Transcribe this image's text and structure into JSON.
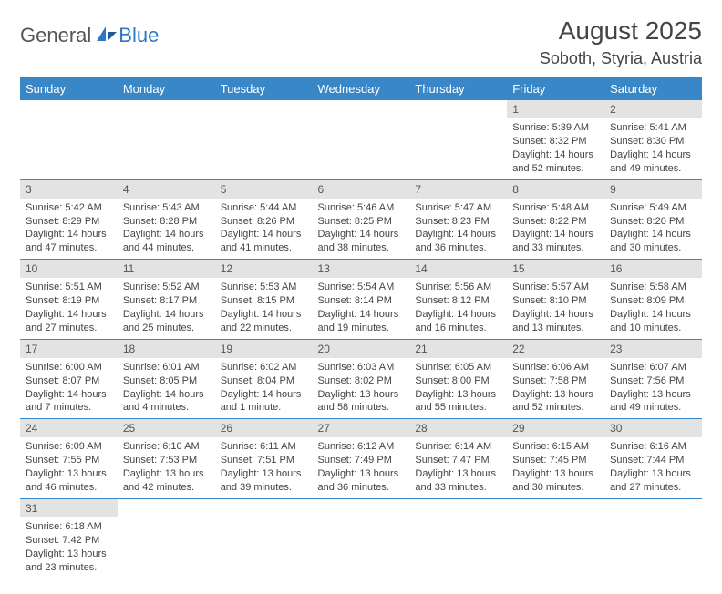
{
  "logo": {
    "part1": "General",
    "part2": "Blue"
  },
  "title": "August 2025",
  "location": "Soboth, Styria, Austria",
  "colors": {
    "header_bg": "#3a87c8",
    "header_text": "#ffffff",
    "daynum_bg": "#e3e3e3",
    "row_divider": "#3a87c8",
    "logo_blue": "#2b78c4",
    "text": "#444444"
  },
  "weekdays": [
    "Sunday",
    "Monday",
    "Tuesday",
    "Wednesday",
    "Thursday",
    "Friday",
    "Saturday"
  ],
  "weeks": [
    [
      null,
      null,
      null,
      null,
      null,
      {
        "d": "1",
        "sr": "Sunrise: 5:39 AM",
        "ss": "Sunset: 8:32 PM",
        "dl1": "Daylight: 14 hours",
        "dl2": "and 52 minutes."
      },
      {
        "d": "2",
        "sr": "Sunrise: 5:41 AM",
        "ss": "Sunset: 8:30 PM",
        "dl1": "Daylight: 14 hours",
        "dl2": "and 49 minutes."
      }
    ],
    [
      {
        "d": "3",
        "sr": "Sunrise: 5:42 AM",
        "ss": "Sunset: 8:29 PM",
        "dl1": "Daylight: 14 hours",
        "dl2": "and 47 minutes."
      },
      {
        "d": "4",
        "sr": "Sunrise: 5:43 AM",
        "ss": "Sunset: 8:28 PM",
        "dl1": "Daylight: 14 hours",
        "dl2": "and 44 minutes."
      },
      {
        "d": "5",
        "sr": "Sunrise: 5:44 AM",
        "ss": "Sunset: 8:26 PM",
        "dl1": "Daylight: 14 hours",
        "dl2": "and 41 minutes."
      },
      {
        "d": "6",
        "sr": "Sunrise: 5:46 AM",
        "ss": "Sunset: 8:25 PM",
        "dl1": "Daylight: 14 hours",
        "dl2": "and 38 minutes."
      },
      {
        "d": "7",
        "sr": "Sunrise: 5:47 AM",
        "ss": "Sunset: 8:23 PM",
        "dl1": "Daylight: 14 hours",
        "dl2": "and 36 minutes."
      },
      {
        "d": "8",
        "sr": "Sunrise: 5:48 AM",
        "ss": "Sunset: 8:22 PM",
        "dl1": "Daylight: 14 hours",
        "dl2": "and 33 minutes."
      },
      {
        "d": "9",
        "sr": "Sunrise: 5:49 AM",
        "ss": "Sunset: 8:20 PM",
        "dl1": "Daylight: 14 hours",
        "dl2": "and 30 minutes."
      }
    ],
    [
      {
        "d": "10",
        "sr": "Sunrise: 5:51 AM",
        "ss": "Sunset: 8:19 PM",
        "dl1": "Daylight: 14 hours",
        "dl2": "and 27 minutes."
      },
      {
        "d": "11",
        "sr": "Sunrise: 5:52 AM",
        "ss": "Sunset: 8:17 PM",
        "dl1": "Daylight: 14 hours",
        "dl2": "and 25 minutes."
      },
      {
        "d": "12",
        "sr": "Sunrise: 5:53 AM",
        "ss": "Sunset: 8:15 PM",
        "dl1": "Daylight: 14 hours",
        "dl2": "and 22 minutes."
      },
      {
        "d": "13",
        "sr": "Sunrise: 5:54 AM",
        "ss": "Sunset: 8:14 PM",
        "dl1": "Daylight: 14 hours",
        "dl2": "and 19 minutes."
      },
      {
        "d": "14",
        "sr": "Sunrise: 5:56 AM",
        "ss": "Sunset: 8:12 PM",
        "dl1": "Daylight: 14 hours",
        "dl2": "and 16 minutes."
      },
      {
        "d": "15",
        "sr": "Sunrise: 5:57 AM",
        "ss": "Sunset: 8:10 PM",
        "dl1": "Daylight: 14 hours",
        "dl2": "and 13 minutes."
      },
      {
        "d": "16",
        "sr": "Sunrise: 5:58 AM",
        "ss": "Sunset: 8:09 PM",
        "dl1": "Daylight: 14 hours",
        "dl2": "and 10 minutes."
      }
    ],
    [
      {
        "d": "17",
        "sr": "Sunrise: 6:00 AM",
        "ss": "Sunset: 8:07 PM",
        "dl1": "Daylight: 14 hours",
        "dl2": "and 7 minutes."
      },
      {
        "d": "18",
        "sr": "Sunrise: 6:01 AM",
        "ss": "Sunset: 8:05 PM",
        "dl1": "Daylight: 14 hours",
        "dl2": "and 4 minutes."
      },
      {
        "d": "19",
        "sr": "Sunrise: 6:02 AM",
        "ss": "Sunset: 8:04 PM",
        "dl1": "Daylight: 14 hours",
        "dl2": "and 1 minute."
      },
      {
        "d": "20",
        "sr": "Sunrise: 6:03 AM",
        "ss": "Sunset: 8:02 PM",
        "dl1": "Daylight: 13 hours",
        "dl2": "and 58 minutes."
      },
      {
        "d": "21",
        "sr": "Sunrise: 6:05 AM",
        "ss": "Sunset: 8:00 PM",
        "dl1": "Daylight: 13 hours",
        "dl2": "and 55 minutes."
      },
      {
        "d": "22",
        "sr": "Sunrise: 6:06 AM",
        "ss": "Sunset: 7:58 PM",
        "dl1": "Daylight: 13 hours",
        "dl2": "and 52 minutes."
      },
      {
        "d": "23",
        "sr": "Sunrise: 6:07 AM",
        "ss": "Sunset: 7:56 PM",
        "dl1": "Daylight: 13 hours",
        "dl2": "and 49 minutes."
      }
    ],
    [
      {
        "d": "24",
        "sr": "Sunrise: 6:09 AM",
        "ss": "Sunset: 7:55 PM",
        "dl1": "Daylight: 13 hours",
        "dl2": "and 46 minutes."
      },
      {
        "d": "25",
        "sr": "Sunrise: 6:10 AM",
        "ss": "Sunset: 7:53 PM",
        "dl1": "Daylight: 13 hours",
        "dl2": "and 42 minutes."
      },
      {
        "d": "26",
        "sr": "Sunrise: 6:11 AM",
        "ss": "Sunset: 7:51 PM",
        "dl1": "Daylight: 13 hours",
        "dl2": "and 39 minutes."
      },
      {
        "d": "27",
        "sr": "Sunrise: 6:12 AM",
        "ss": "Sunset: 7:49 PM",
        "dl1": "Daylight: 13 hours",
        "dl2": "and 36 minutes."
      },
      {
        "d": "28",
        "sr": "Sunrise: 6:14 AM",
        "ss": "Sunset: 7:47 PM",
        "dl1": "Daylight: 13 hours",
        "dl2": "and 33 minutes."
      },
      {
        "d": "29",
        "sr": "Sunrise: 6:15 AM",
        "ss": "Sunset: 7:45 PM",
        "dl1": "Daylight: 13 hours",
        "dl2": "and 30 minutes."
      },
      {
        "d": "30",
        "sr": "Sunrise: 6:16 AM",
        "ss": "Sunset: 7:44 PM",
        "dl1": "Daylight: 13 hours",
        "dl2": "and 27 minutes."
      }
    ],
    [
      {
        "d": "31",
        "sr": "Sunrise: 6:18 AM",
        "ss": "Sunset: 7:42 PM",
        "dl1": "Daylight: 13 hours",
        "dl2": "and 23 minutes."
      },
      null,
      null,
      null,
      null,
      null,
      null
    ]
  ]
}
